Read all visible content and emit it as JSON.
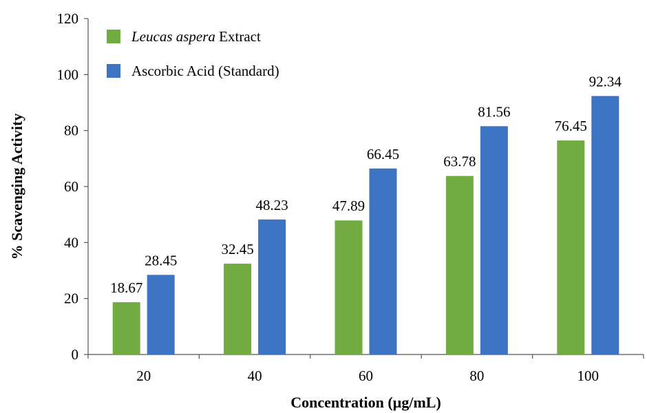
{
  "chart_data": {
    "type": "bar",
    "categories": [
      "20",
      "40",
      "60",
      "80",
      "100"
    ],
    "series": [
      {
        "name_italic": "Leucas aspera",
        "name_rest": " Extract",
        "color": "#72AB42",
        "values": [
          18.67,
          32.45,
          47.89,
          63.78,
          76.45
        ]
      },
      {
        "name_italic": "",
        "name_rest": "Ascorbic Acid (Standard)",
        "color": "#3C74C3",
        "values": [
          28.45,
          48.23,
          66.45,
          81.56,
          92.34
        ]
      }
    ],
    "value_labels": [
      [
        "18.67",
        "32.45",
        "47.89",
        "63.78",
        "76.45"
      ],
      [
        "28.45",
        "48.23",
        "66.45",
        "81.56",
        "92.34"
      ]
    ],
    "title": "",
    "xlabel": "Concentration (µg/mL)",
    "ylabel": "% Scavenging Activity",
    "ylim": [
      0,
      120
    ],
    "yticks": [
      "0",
      "20",
      "40",
      "60",
      "80",
      "100",
      "120"
    ],
    "grid": false,
    "legend_position": "top-left"
  }
}
